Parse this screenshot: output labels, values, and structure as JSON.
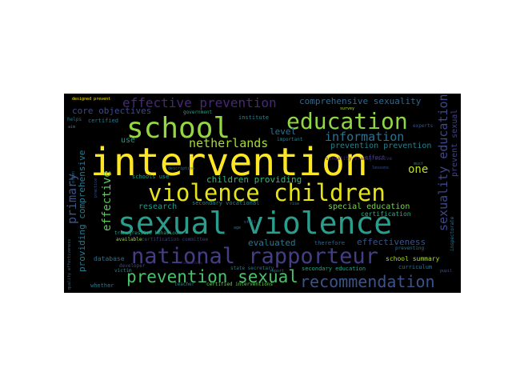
{
  "words": [
    {
      "text": "intervention",
      "color": "#fde725"
    },
    {
      "text": "sexual violence",
      "color": "#2a9d8c"
    },
    {
      "text": "violence children",
      "color": "#e6e419"
    },
    {
      "text": "school",
      "color": "#93d741"
    },
    {
      "text": "education",
      "color": "#8fd744"
    },
    {
      "text": "national rapporteur",
      "color": "#433e85"
    },
    {
      "text": "prevention sexual",
      "color": "#4ac16d"
    },
    {
      "text": "recommendation",
      "color": "#3b528b"
    },
    {
      "text": "effective prevention",
      "color": "#482878"
    },
    {
      "text": "netherlands",
      "color": "#a5db36"
    },
    {
      "text": "information",
      "color": "#2c728e"
    },
    {
      "text": "comprehensive sexuality",
      "color": "#31688e"
    },
    {
      "text": "core objectives",
      "color": "#3e4989"
    },
    {
      "text": "children providing",
      "color": "#34b679"
    },
    {
      "text": "sexuality education",
      "color": "#3f4788"
    },
    {
      "text": "primary",
      "color": "#3b528b"
    },
    {
      "text": "effective",
      "color": "#5ec962"
    },
    {
      "text": "providing comprehensive",
      "color": "#2a788e"
    },
    {
      "text": "prevent sexual",
      "color": "#414487"
    },
    {
      "text": "government",
      "color": "#20a386"
    },
    {
      "text": "level",
      "color": "#2d708e"
    },
    {
      "text": "use",
      "color": "#1f988b"
    },
    {
      "text": "one",
      "color": "#bddf26"
    },
    {
      "text": "prevention prevention",
      "color": "#26828e"
    },
    {
      "text": "research",
      "color": "#1e9b8a"
    },
    {
      "text": "special education",
      "color": "#7ad151"
    },
    {
      "text": "certification",
      "color": "#27ad81"
    },
    {
      "text": "evaluated",
      "color": "#2a788e"
    },
    {
      "text": "effectiveness",
      "color": "#3b528b"
    },
    {
      "text": "school summary",
      "color": "#addc30"
    },
    {
      "text": "secondary education",
      "color": "#22a884"
    },
    {
      "text": "curriculum",
      "color": "#2c728e"
    },
    {
      "text": "database",
      "color": "#2d708e"
    },
    {
      "text": "whether",
      "color": "#2a788e"
    },
    {
      "text": "teacher",
      "color": "#26828e"
    },
    {
      "text": "certified interventions",
      "color": "#6ece58"
    },
    {
      "text": "transgressive behaviour",
      "color": "#1fa088"
    },
    {
      "text": "secondary vocational",
      "color": "#26828e"
    },
    {
      "text": "available",
      "color": "#a2da37"
    },
    {
      "text": "certification committee",
      "color": "#433e85"
    },
    {
      "text": "developer",
      "color": "#3e4989"
    },
    {
      "text": "victim",
      "color": "#23898e"
    },
    {
      "text": "relationships",
      "color": "#482878"
    },
    {
      "text": "state secretary",
      "color": "#2a788e"
    },
    {
      "text": "report",
      "color": "#2c728e"
    },
    {
      "text": "inspectorate",
      "color": "#2c728e"
    },
    {
      "text": "institute",
      "color": "#26828e"
    },
    {
      "text": "certified",
      "color": "#2a788e"
    },
    {
      "text": "designed prevent",
      "color": "#ffee00"
    },
    {
      "text": "lessons",
      "color": "#3b528b"
    },
    {
      "text": "effect",
      "color": "#3e4989"
    },
    {
      "text": "experts",
      "color": "#3b528b"
    },
    {
      "text": "important",
      "color": "#26828e"
    },
    {
      "text": "age",
      "color": "#2c728e"
    },
    {
      "text": "therefore",
      "color": "#31688e"
    },
    {
      "text": "preventing",
      "color": "#2c728e"
    },
    {
      "text": "must",
      "color": "#2a788e"
    },
    {
      "text": "pupil",
      "color": "#3b528b"
    },
    {
      "text": "survey",
      "color": "#a5db36"
    },
    {
      "text": "schools use",
      "color": "#1e9b8a"
    },
    {
      "text": "description",
      "color": "#2a788e"
    },
    {
      "text": "rise",
      "color": "#2a788e"
    },
    {
      "text": "still",
      "color": "#2c728e"
    },
    {
      "text": "sexuality transgressive",
      "color": "#482878"
    },
    {
      "text": "helps",
      "color": "#2c728e"
    },
    {
      "text": "aim",
      "color": "#26828e"
    },
    {
      "text": "often",
      "color": "#2c728e"
    },
    {
      "text": "practice",
      "color": "#3b528b"
    },
    {
      "text": "quality effectiveness",
      "color": "#31688e"
    }
  ]
}
